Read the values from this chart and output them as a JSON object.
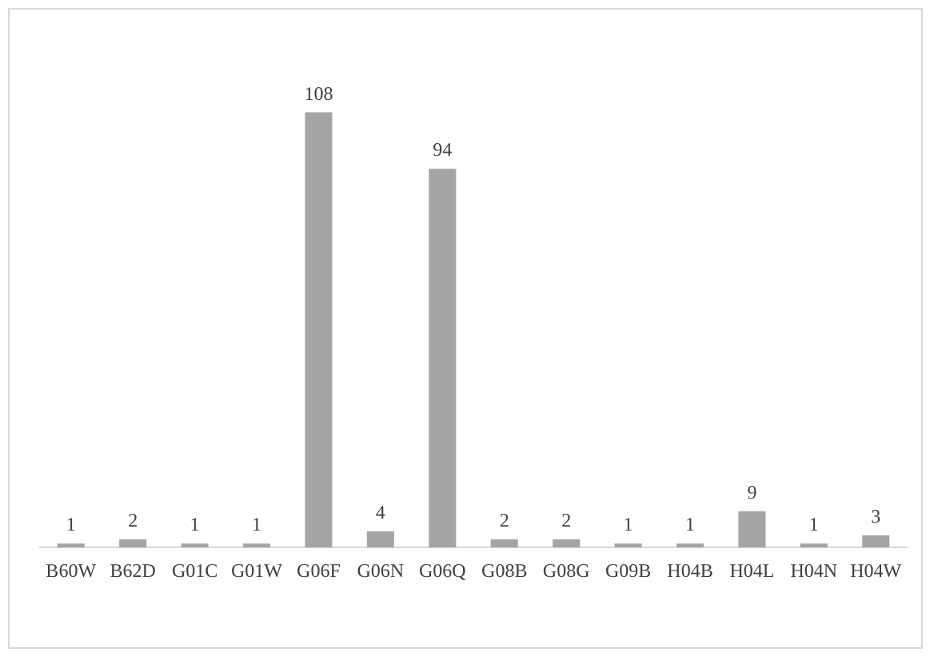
{
  "chart_data": {
    "type": "bar",
    "categories": [
      "B60W",
      "B62D",
      "G01C",
      "G01W",
      "G06F",
      "G06N",
      "G06Q",
      "G08B",
      "G08G",
      "G09B",
      "H04B",
      "H04L",
      "H04N",
      "H04W"
    ],
    "values": [
      1,
      2,
      1,
      1,
      108,
      4,
      94,
      2,
      2,
      1,
      1,
      9,
      1,
      3
    ],
    "color": "#a5a5a5",
    "data_labels": true,
    "grid": false,
    "legend": false,
    "tick_labels": "x"
  }
}
